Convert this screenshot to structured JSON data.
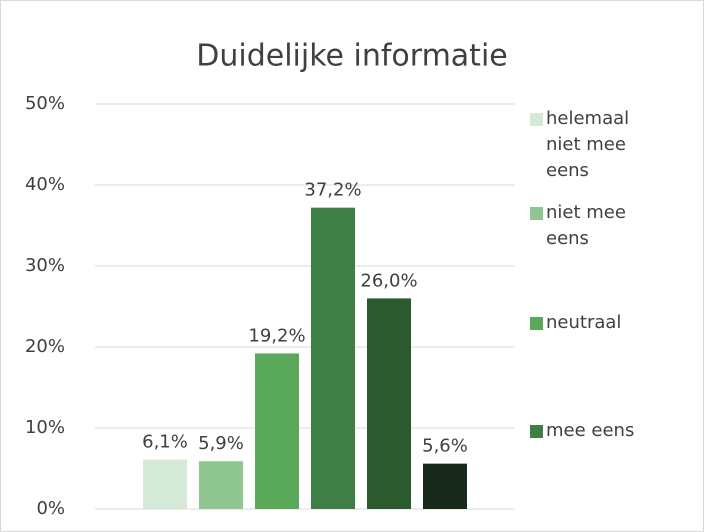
{
  "chart_data": {
    "type": "bar",
    "title": "Duidelijke informatie",
    "series": [
      {
        "name": "helemaal niet mee eens",
        "color": "#d5ead6",
        "values": [
          6.1
        ],
        "value_labels": [
          "6,1%"
        ]
      },
      {
        "name": "niet mee eens",
        "color": "#8fc58f",
        "values": [
          5.9
        ],
        "value_labels": [
          "5,9%"
        ]
      },
      {
        "name": "neutraal",
        "color": "#5aa95a",
        "values": [
          19.2
        ],
        "value_labels": [
          "19,2%"
        ]
      },
      {
        "name": "mee eens",
        "color": "#3e7f45",
        "values": [
          37.2
        ],
        "value_labels": [
          "37,2%"
        ]
      },
      {
        "color": "#2b5a2e",
        "values": [
          26.0
        ],
        "value_labels": [
          "26,0%"
        ]
      },
      {
        "color": "#16291a",
        "values": [
          5.6
        ],
        "value_labels": [
          "5,6%"
        ]
      }
    ],
    "ylim": [
      0,
      50
    ],
    "yticks": [
      {
        "value": 0,
        "label": "0%"
      },
      {
        "value": 10,
        "label": "10%"
      },
      {
        "value": 20,
        "label": "20%"
      },
      {
        "value": 30,
        "label": "30%"
      },
      {
        "value": 40,
        "label": "40%"
      },
      {
        "value": 50,
        "label": "50%"
      }
    ],
    "grid": true,
    "legend": "right"
  }
}
